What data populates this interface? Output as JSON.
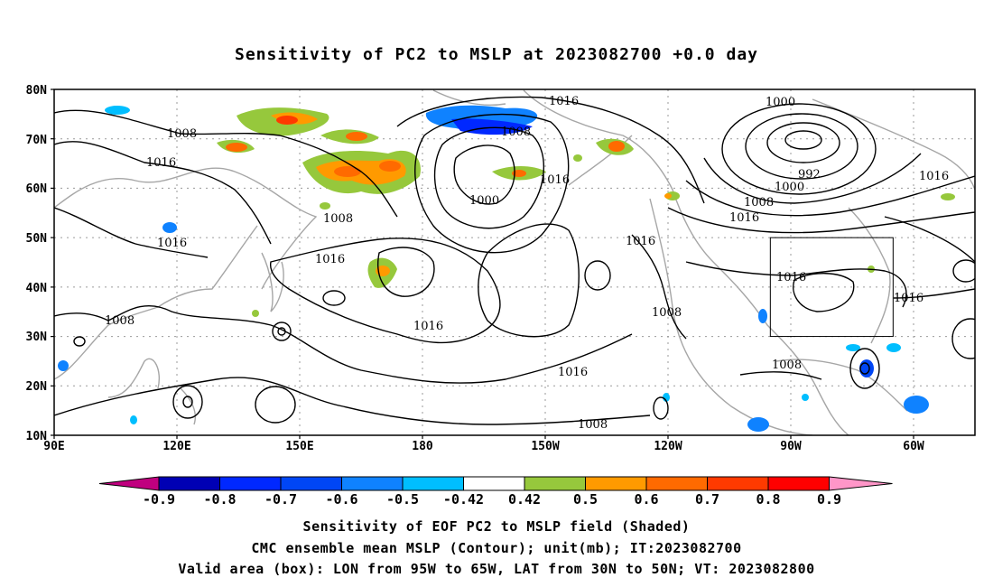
{
  "title": "Sensitivity of PC2 to MSLP at 2023082700 +0.0 day",
  "lat_labels": [
    "80N",
    "70N",
    "60N",
    "50N",
    "40N",
    "30N",
    "20N",
    "10N"
  ],
  "lon_labels": [
    "90E",
    "120E",
    "150E",
    "180",
    "150W",
    "120W",
    "90W",
    "60W"
  ],
  "contour_labels": [
    "1016",
    "1008",
    "1000",
    "992",
    "1000",
    "1008",
    "1016",
    "1016",
    "1008",
    "1016",
    "1016",
    "1000",
    "1016",
    "1016",
    "1016",
    "1016",
    "1008",
    "1008",
    "1016",
    "1016",
    "1008",
    "1008",
    "1008"
  ],
  "colorbar": {
    "labels": [
      "-0.9",
      "-0.8",
      "-0.7",
      "-0.6",
      "-0.5",
      "-0.42",
      "0.42",
      "0.5",
      "0.6",
      "0.7",
      "0.8",
      "0.9"
    ],
    "colors": [
      "#c0007f",
      "#0000b4",
      "#0028ff",
      "#0046f5",
      "#0f82ff",
      "#00beff",
      "#ffffff",
      "#96c83c",
      "#ff9a00",
      "#ff6a00",
      "#ff3a00",
      "#ff0000",
      "#ff96c8"
    ]
  },
  "valid_box": {
    "lon_w": -95,
    "lon_e": -65,
    "lat_s": 30,
    "lat_n": 50
  },
  "captions": [
    "Sensitivity of EOF PC2 to MSLP field (Shaded)",
    "CMC ensemble mean MSLP (Contour); unit(mb); IT:2023082700",
    "Valid area (box): LON from 95W to 65W, LAT from 30N to 50N; VT: 2023082800"
  ]
}
